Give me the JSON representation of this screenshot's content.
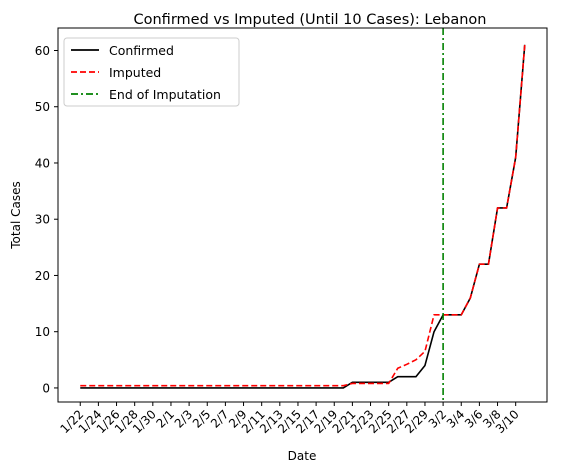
{
  "chart_data": {
    "type": "line",
    "title": "Confirmed vs Imputed (Until 10 Cases): Lebanon",
    "xlabel": "Date",
    "ylabel": "Total Cases",
    "ylim": [
      -2.5,
      64
    ],
    "yticks": [
      0,
      10,
      20,
      30,
      40,
      50,
      60
    ],
    "grid": false,
    "legend_position": "upper-left",
    "categories": [
      "1/22",
      "1/23",
      "1/24",
      "1/25",
      "1/26",
      "1/27",
      "1/28",
      "1/29",
      "1/30",
      "1/31",
      "2/1",
      "2/2",
      "2/3",
      "2/4",
      "2/5",
      "2/6",
      "2/7",
      "2/8",
      "2/9",
      "2/10",
      "2/11",
      "2/12",
      "2/13",
      "2/14",
      "2/15",
      "2/16",
      "2/17",
      "2/18",
      "2/19",
      "2/20",
      "2/21",
      "2/22",
      "2/23",
      "2/24",
      "2/25",
      "2/26",
      "2/27",
      "2/28",
      "2/29",
      "3/1",
      "3/2",
      "3/3",
      "3/4",
      "3/5",
      "3/6",
      "3/7",
      "3/8",
      "3/9",
      "3/10",
      "3/11"
    ],
    "tick_labels": [
      "1/22",
      "1/24",
      "1/26",
      "1/28",
      "1/30",
      "2/1",
      "2/3",
      "2/5",
      "2/7",
      "2/9",
      "2/11",
      "2/13",
      "2/15",
      "2/17",
      "2/19",
      "2/21",
      "2/23",
      "2/25",
      "2/27",
      "2/29",
      "3/2",
      "3/4",
      "3/6",
      "3/8",
      "3/10"
    ],
    "series": [
      {
        "name": "Confirmed",
        "color": "#000000",
        "style": "solid",
        "values": [
          0,
          0,
          0,
          0,
          0,
          0,
          0,
          0,
          0,
          0,
          0,
          0,
          0,
          0,
          0,
          0,
          0,
          0,
          0,
          0,
          0,
          0,
          0,
          0,
          0,
          0,
          0,
          0,
          0,
          0,
          1,
          1,
          1,
          1,
          1,
          2,
          2,
          2,
          4,
          10,
          13,
          13,
          13,
          16,
          22,
          22,
          32,
          32,
          41,
          61
        ]
      },
      {
        "name": "Imputed",
        "color": "#ff0000",
        "style": "dashed",
        "values": [
          0.4,
          0.4,
          0.4,
          0.4,
          0.4,
          0.4,
          0.4,
          0.4,
          0.4,
          0.4,
          0.4,
          0.4,
          0.4,
          0.4,
          0.4,
          0.4,
          0.4,
          0.4,
          0.4,
          0.4,
          0.4,
          0.4,
          0.4,
          0.4,
          0.4,
          0.4,
          0.4,
          0.4,
          0.4,
          0.4,
          0.8,
          0.8,
          0.8,
          0.8,
          0.8,
          3.5,
          4.2,
          5,
          6.5,
          13,
          13,
          13,
          13,
          16,
          22,
          22,
          32,
          32,
          41,
          61
        ]
      }
    ],
    "vline": {
      "name": "End of Imputation",
      "x": "3/2",
      "color": "#008000",
      "style": "dashdot"
    }
  }
}
